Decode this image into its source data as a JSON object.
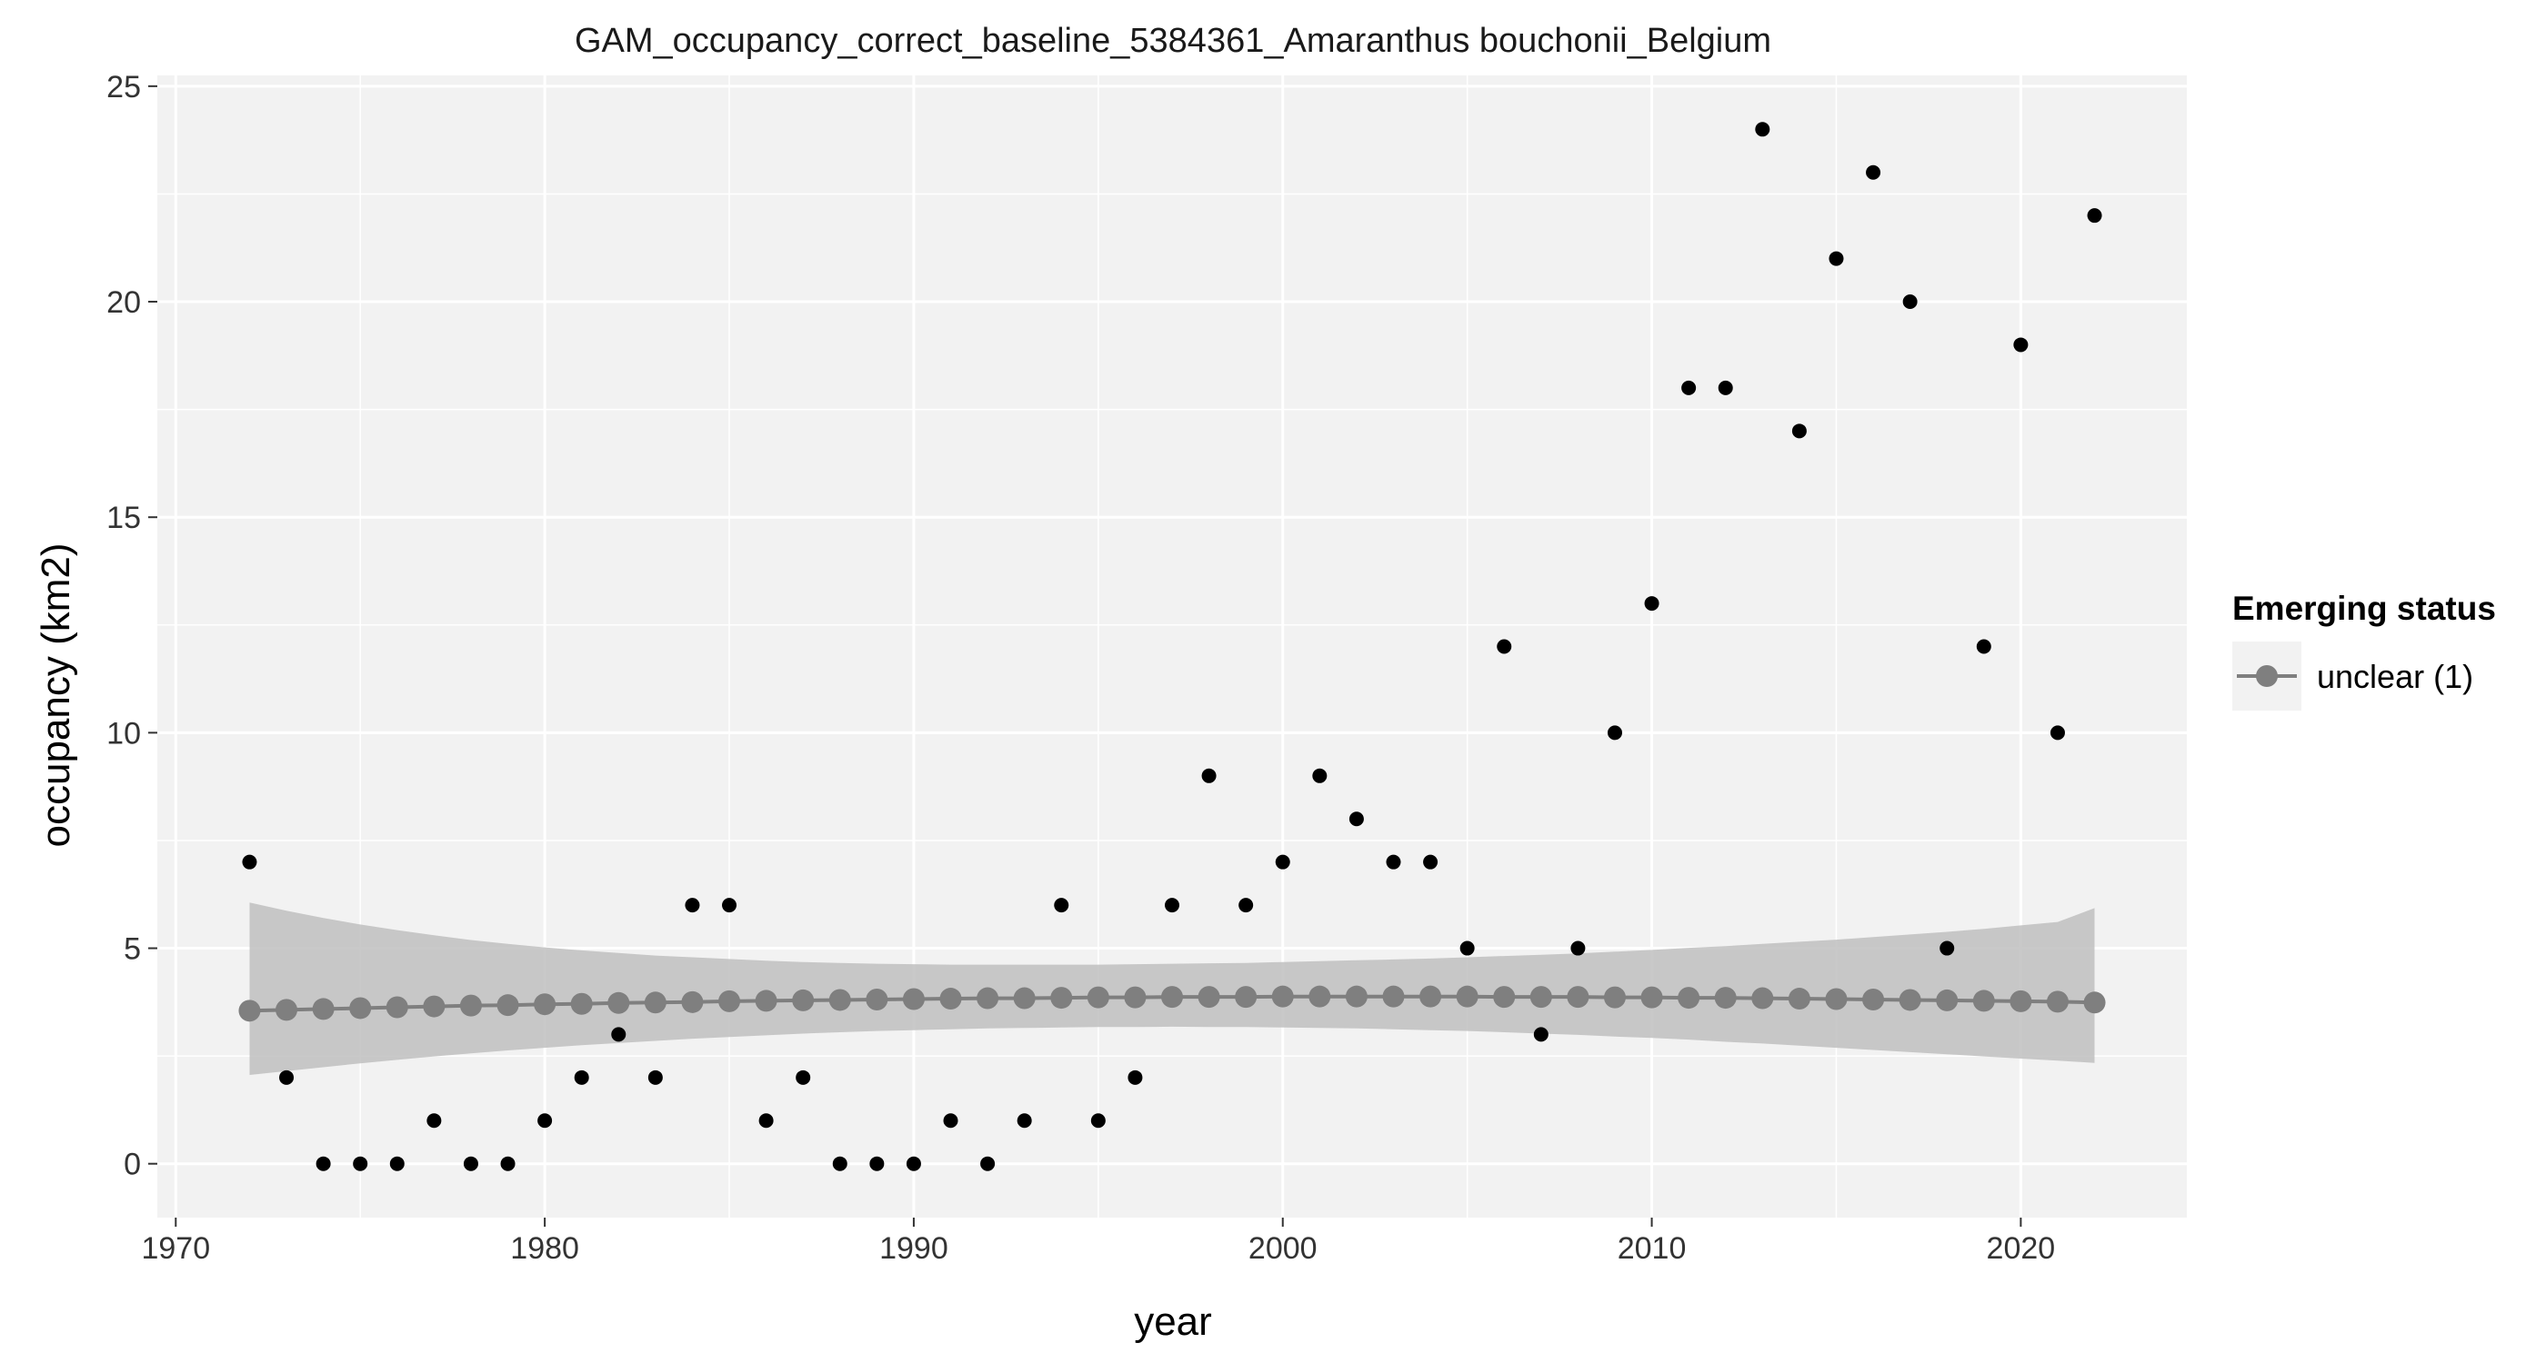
{
  "chart_data": {
    "type": "scatter",
    "title": "GAM_occupancy_correct_baseline_5384361_Amaranthus bouchonii_Belgium",
    "xlabel": "year",
    "ylabel": "occupancy (km2)",
    "xlim": [
      1969.5,
      2024.5
    ],
    "ylim": [
      -1.25,
      25.25
    ],
    "x_ticks": [
      1970,
      1980,
      1990,
      2000,
      2010,
      2020
    ],
    "y_ticks": [
      0,
      5,
      10,
      15,
      20,
      25
    ],
    "grid": true,
    "legend_position": "right",
    "legend": {
      "title": "Emerging status",
      "items": [
        {
          "label": "unclear (1)",
          "color": "#7f7f7f"
        }
      ]
    },
    "observed": {
      "color": "#000000",
      "x": [
        1972,
        1973,
        1974,
        1975,
        1976,
        1977,
        1978,
        1979,
        1980,
        1981,
        1982,
        1983,
        1984,
        1985,
        1986,
        1987,
        1988,
        1989,
        1990,
        1991,
        1992,
        1993,
        1994,
        1995,
        1996,
        1997,
        1998,
        1999,
        2000,
        2001,
        2002,
        2003,
        2004,
        2005,
        2006,
        2007,
        2008,
        2009,
        2010,
        2011,
        2012,
        2013,
        2014,
        2015,
        2016,
        2017,
        2018,
        2019,
        2020,
        2021,
        2022
      ],
      "y": [
        7,
        2,
        0,
        0,
        0,
        1,
        0,
        0,
        1,
        2,
        3,
        2,
        6,
        6,
        1,
        2,
        0,
        0,
        0,
        1,
        0,
        1,
        6,
        1,
        2,
        6,
        9,
        6,
        7,
        9,
        8,
        7,
        7,
        5,
        12,
        3,
        5,
        10,
        13,
        18,
        18,
        24,
        17,
        21,
        23,
        20,
        5,
        12,
        19,
        10,
        22
      ]
    },
    "fit": {
      "name": "unclear (1)",
      "color": "#7f7f7f",
      "ribbon_color": "#bfbfbf",
      "x": [
        1972,
        1973,
        1974,
        1975,
        1976,
        1977,
        1978,
        1979,
        1980,
        1981,
        1982,
        1983,
        1984,
        1985,
        1986,
        1987,
        1988,
        1989,
        1990,
        1991,
        1992,
        1993,
        1994,
        1995,
        1996,
        1997,
        1998,
        1999,
        2000,
        2001,
        2002,
        2003,
        2004,
        2005,
        2006,
        2007,
        2008,
        2009,
        2010,
        2011,
        2012,
        2013,
        2014,
        2015,
        2016,
        2017,
        2018,
        2019,
        2020,
        2021,
        2022
      ],
      "y": [
        3.55,
        3.57,
        3.59,
        3.61,
        3.63,
        3.65,
        3.67,
        3.68,
        3.7,
        3.71,
        3.73,
        3.74,
        3.75,
        3.77,
        3.78,
        3.79,
        3.8,
        3.81,
        3.82,
        3.83,
        3.84,
        3.84,
        3.85,
        3.86,
        3.86,
        3.87,
        3.87,
        3.87,
        3.88,
        3.88,
        3.88,
        3.88,
        3.88,
        3.88,
        3.87,
        3.87,
        3.87,
        3.86,
        3.86,
        3.85,
        3.85,
        3.84,
        3.83,
        3.82,
        3.81,
        3.8,
        3.79,
        3.78,
        3.77,
        3.76,
        3.74
      ],
      "lower": [
        2.06,
        2.15,
        2.24,
        2.33,
        2.41,
        2.49,
        2.56,
        2.63,
        2.69,
        2.75,
        2.8,
        2.85,
        2.9,
        2.94,
        2.98,
        3.02,
        3.05,
        3.08,
        3.1,
        3.12,
        3.14,
        3.15,
        3.16,
        3.17,
        3.17,
        3.18,
        3.17,
        3.17,
        3.16,
        3.15,
        3.14,
        3.12,
        3.1,
        3.08,
        3.05,
        3.02,
        2.99,
        2.95,
        2.92,
        2.88,
        2.83,
        2.79,
        2.74,
        2.69,
        2.64,
        2.59,
        2.54,
        2.49,
        2.44,
        2.39,
        2.34
      ],
      "upper": [
        6.06,
        5.87,
        5.7,
        5.55,
        5.42,
        5.3,
        5.19,
        5.1,
        5.02,
        4.95,
        4.89,
        4.83,
        4.79,
        4.75,
        4.71,
        4.68,
        4.66,
        4.64,
        4.63,
        4.62,
        4.62,
        4.62,
        4.62,
        4.62,
        4.63,
        4.64,
        4.65,
        4.66,
        4.68,
        4.7,
        4.72,
        4.74,
        4.76,
        4.79,
        4.82,
        4.85,
        4.88,
        4.92,
        4.96,
        5.01,
        5.05,
        5.1,
        5.15,
        5.2,
        5.26,
        5.32,
        5.38,
        5.45,
        5.53,
        5.61,
        5.93
      ]
    }
  }
}
